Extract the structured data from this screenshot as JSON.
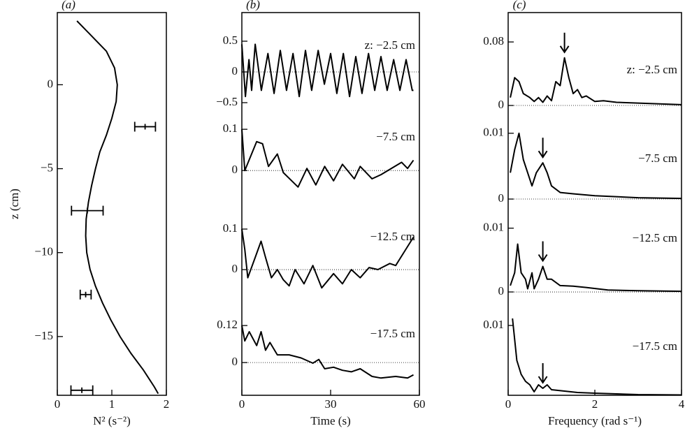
{
  "chart_data": [
    {
      "type": "profile",
      "panel_label": "(a)",
      "xlabel": "N² (s⁻²)",
      "ylabel": "z (cm)",
      "xlim": [
        0,
        2
      ],
      "ylim": [
        -18.5,
        4.3
      ],
      "xticks": [
        0,
        1,
        2
      ],
      "yticks": [
        0,
        {
          "value": -5,
          "label": "−5"
        },
        {
          "value": -10,
          "label": "−10"
        },
        {
          "value": -15,
          "label": "−15"
        }
      ],
      "series": [
        {
          "color": "#000000",
          "x": [
            0.36,
            0.6,
            0.9,
            1.05,
            1.1,
            1.08,
            1.0,
            0.9,
            0.78,
            0.7,
            0.63,
            0.57,
            0.53,
            0.52,
            0.54,
            0.6,
            0.7,
            0.83,
            0.98,
            1.15,
            1.35,
            1.58,
            1.78,
            1.85
          ],
          "y": [
            3.8,
            3,
            2,
            1,
            0,
            -1,
            -2,
            -3,
            -4,
            -5,
            -6,
            -7,
            -8,
            -9,
            -10,
            -11,
            -12,
            -13,
            -14,
            -15,
            -16,
            -17,
            -18,
            -18.4
          ]
        }
      ],
      "error_bars": [
        {
          "y": -2.5,
          "x": 1.61,
          "xerr": 0.19
        },
        {
          "y": -7.5,
          "x": 0.55,
          "xerr": 0.29
        },
        {
          "y": -12.5,
          "x": 0.52,
          "xerr": 0.1
        },
        {
          "y": -18.2,
          "x": 0.45,
          "xerr": 0.2
        }
      ]
    },
    {
      "type": "line",
      "panel_label": "(b)",
      "annotation": "z: −2.5 cm",
      "xlim": [
        0,
        60
      ],
      "ylim": [
        -0.591,
        0.966
      ],
      "yticks": [
        0.5,
        0,
        {
          "value": -0.5,
          "label": "−0.5"
        }
      ],
      "x": [
        0,
        1.2,
        2.4,
        3.3,
        4.5,
        6.6,
        8.8,
        10.9,
        13,
        15.1,
        17.3,
        19.4,
        21.5,
        23.6,
        25.8,
        27.9,
        30,
        32.1,
        34.3,
        36.4,
        38.5,
        40.6,
        42.8,
        44.9,
        47,
        49.1,
        51.3,
        53.4,
        55.5,
        57.6,
        58
      ],
      "values": [
        0.45,
        -0.4,
        0.2,
        -0.3,
        0.45,
        -0.3,
        0.3,
        -0.35,
        0.35,
        -0.3,
        0.3,
        -0.4,
        0.35,
        -0.3,
        0.35,
        -0.2,
        0.3,
        -0.35,
        0.3,
        -0.4,
        0.25,
        -0.35,
        0.3,
        -0.3,
        0.25,
        -0.3,
        0.2,
        -0.3,
        0.2,
        -0.3,
        -0.3
      ]
    },
    {
      "type": "line",
      "annotation": "−7.5 cm",
      "xlim": [
        0,
        60
      ],
      "ylim": [
        -0.081,
        0.151
      ],
      "yticks": [
        0.1,
        0
      ],
      "x": [
        0,
        1,
        5,
        7,
        9,
        12,
        14,
        19,
        22,
        25,
        28,
        31,
        34,
        38,
        40,
        44,
        47,
        54,
        56,
        58
      ],
      "values": [
        0.1,
        0.0,
        0.07,
        0.065,
        0.01,
        0.04,
        -0.005,
        -0.04,
        0.005,
        -0.035,
        0.01,
        -0.025,
        0.015,
        -0.02,
        0.01,
        -0.02,
        -0.01,
        0.02,
        0.005,
        0.025
      ]
    },
    {
      "type": "line",
      "annotation": "−12.5 cm",
      "xlim": [
        0,
        60
      ],
      "ylim": [
        -0.074,
        0.162
      ],
      "yticks": [
        0.1,
        0
      ],
      "x": [
        0,
        1,
        2,
        4.5,
        6.5,
        8,
        10,
        12,
        14,
        16,
        18,
        21,
        24,
        27,
        31,
        34,
        37,
        40,
        43,
        46,
        50,
        52,
        55,
        58
      ],
      "values": [
        0.1,
        0.05,
        -0.02,
        0.03,
        0.07,
        0.03,
        -0.02,
        0.0,
        -0.025,
        -0.04,
        0.0,
        -0.035,
        0.01,
        -0.045,
        -0.01,
        -0.035,
        0.0,
        -0.02,
        0.005,
        0.0,
        0.015,
        0.01,
        0.045,
        0.08
      ]
    },
    {
      "type": "line",
      "annotation": "−17.5 cm",
      "xlabel": "Time (s)",
      "xlim": [
        0,
        60
      ],
      "ylim": [
        -0.106,
        0.204
      ],
      "yticks": [
        0.12,
        0
      ],
      "xticks": [
        0,
        30,
        60
      ],
      "x": [
        0,
        1,
        2.5,
        5,
        6.5,
        8,
        9.5,
        12,
        16,
        20,
        24,
        26,
        28,
        31,
        34,
        37,
        40,
        44,
        47,
        52,
        56,
        58
      ],
      "values": [
        0.12,
        0.07,
        0.1,
        0.055,
        0.1,
        0.04,
        0.065,
        0.025,
        0.025,
        0.015,
        -0.002,
        0.01,
        -0.02,
        -0.015,
        -0.025,
        -0.03,
        -0.02,
        -0.045,
        -0.05,
        -0.045,
        -0.05,
        -0.04
      ]
    },
    {
      "type": "line",
      "panel_label": "(c)",
      "annotation": "z: −2.5 cm",
      "xlim": [
        0,
        4
      ],
      "ylim": [
        -0.0035,
        0.117
      ],
      "yticks": [
        0.08,
        0
      ],
      "arrow_x": 1.3,
      "x": [
        0.05,
        0.15,
        0.25,
        0.35,
        0.5,
        0.6,
        0.7,
        0.8,
        0.9,
        1.0,
        1.1,
        1.2,
        1.3,
        1.4,
        1.5,
        1.6,
        1.7,
        1.8,
        2.0,
        2.2,
        2.5,
        3,
        3.5,
        4
      ],
      "values": [
        0.01,
        0.035,
        0.03,
        0.015,
        0.01,
        0.005,
        0.01,
        0.004,
        0.012,
        0.006,
        0.03,
        0.025,
        0.06,
        0.035,
        0.015,
        0.02,
        0.01,
        0.012,
        0.005,
        0.006,
        0.004,
        0.003,
        0.002,
        0.001
      ]
    },
    {
      "type": "line",
      "annotation": "−7.5 cm",
      "xlim": [
        0,
        4
      ],
      "ylim": [
        -0.00074,
        0.0138
      ],
      "yticks": [
        0.01,
        0
      ],
      "arrow_x": 0.8,
      "x": [
        0.05,
        0.15,
        0.25,
        0.35,
        0.45,
        0.55,
        0.65,
        0.8,
        0.9,
        1.0,
        1.2,
        1.5,
        2,
        3,
        4
      ],
      "values": [
        0.004,
        0.0075,
        0.01,
        0.006,
        0.004,
        0.002,
        0.004,
        0.0055,
        0.004,
        0.002,
        0.001,
        0.0008,
        0.0005,
        0.0002,
        0.0001
      ]
    },
    {
      "type": "line",
      "annotation": "−12.5 cm",
      "xlim": [
        0,
        4
      ],
      "ylim": [
        -0.0012,
        0.0138
      ],
      "yticks": [
        0.01,
        0
      ],
      "arrow_x": 0.8,
      "x": [
        0.05,
        0.15,
        0.22,
        0.3,
        0.4,
        0.45,
        0.55,
        0.6,
        0.7,
        0.8,
        0.9,
        1.0,
        1.2,
        1.5,
        1.8,
        2.3,
        3,
        4
      ],
      "values": [
        0.001,
        0.003,
        0.0075,
        0.003,
        0.002,
        0.0005,
        0.003,
        0.0005,
        0.002,
        0.004,
        0.002,
        0.002,
        0.001,
        0.0009,
        0.0007,
        0.0003,
        0.0002,
        0.0001
      ]
    },
    {
      "type": "line",
      "annotation": "−17.5 cm",
      "xlabel": "Frequency (rad s⁻¹)",
      "xlim": [
        0,
        4
      ],
      "ylim": [
        0,
        0.0137
      ],
      "yticks": [
        0.01
      ],
      "xticks": [
        0,
        2,
        4
      ],
      "arrow_x": 0.8,
      "x": [
        0.1,
        0.2,
        0.3,
        0.4,
        0.5,
        0.6,
        0.7,
        0.8,
        0.9,
        1.0,
        1.3,
        1.6,
        2,
        3,
        4
      ],
      "values": [
        0.011,
        0.005,
        0.003,
        0.002,
        0.0015,
        0.0005,
        0.0015,
        0.001,
        0.0015,
        0.0008,
        0.0006,
        0.0004,
        0.0003,
        0.0001,
        5e-05
      ]
    }
  ]
}
